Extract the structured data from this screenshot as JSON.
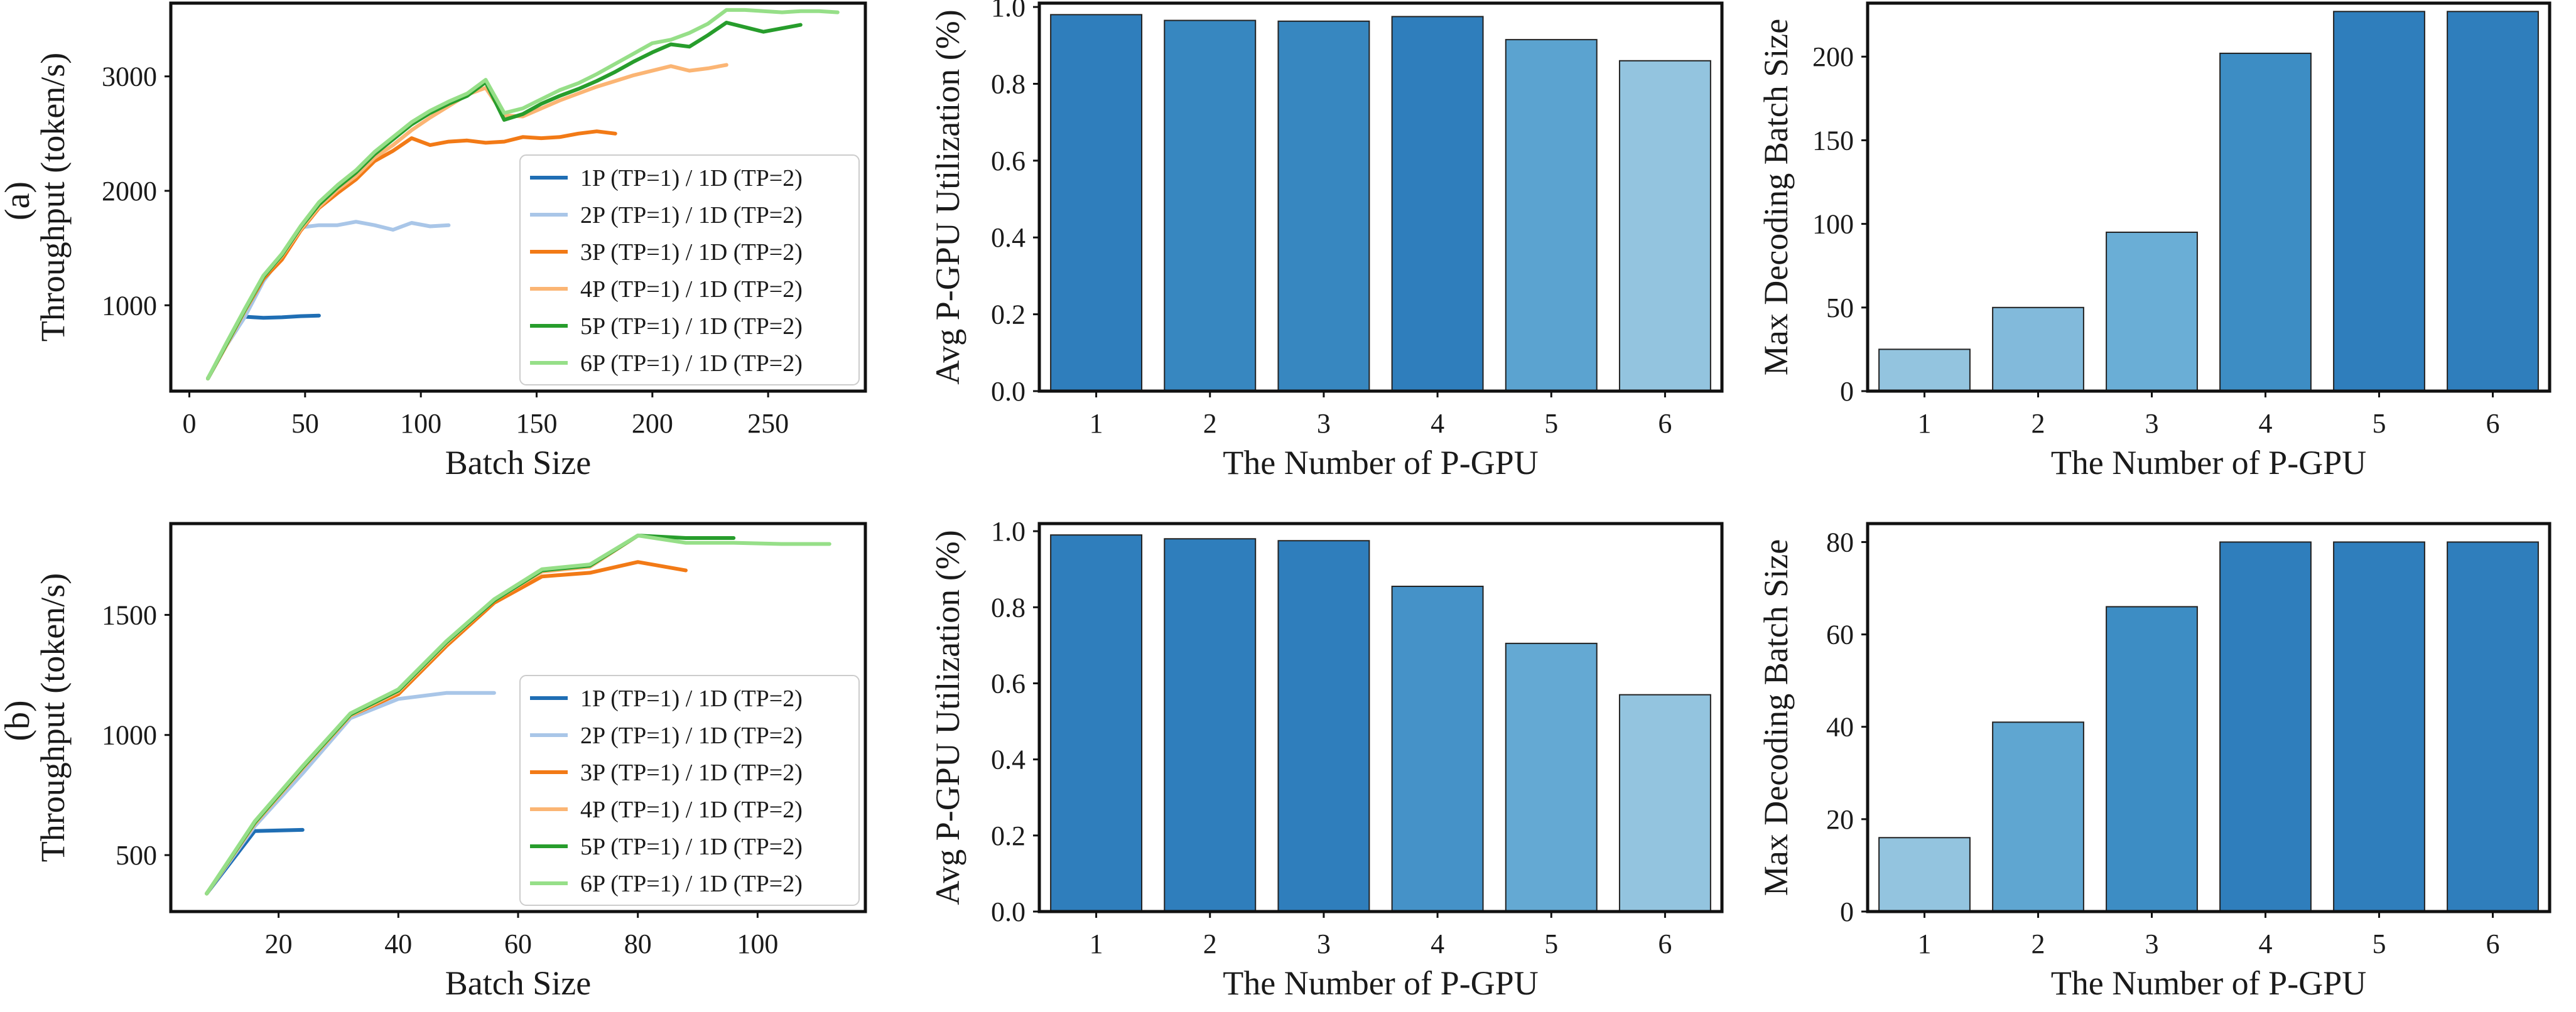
{
  "row_labels": [
    "(a)",
    "(b)"
  ],
  "series_colors": [
    "#1f6eb4",
    "#a9c6e8",
    "#f27a16",
    "#fbb574",
    "#279d2c",
    "#96df88"
  ],
  "chart_data": [
    {
      "type": "line",
      "row": 0,
      "xlabel": "Batch Size",
      "ylabel": "Throughput (token/s)",
      "xlim": [
        -8,
        292
      ],
      "ylim": [
        250,
        3640
      ],
      "xticks": [
        "0",
        "50",
        "100",
        "150",
        "200",
        "250"
      ],
      "yticks": [
        "1000",
        "2000",
        "3000"
      ],
      "legend_position": "lower-right",
      "series": [
        {
          "name": "1P (TP=1) / 1D (TP=2)",
          "x": [
            8,
            16,
            24,
            32,
            40,
            48,
            56
          ],
          "y": [
            360,
            650,
            900,
            890,
            895,
            905,
            910
          ]
        },
        {
          "name": "2P (TP=1) / 1D (TP=2)",
          "x": [
            8,
            16,
            24,
            32,
            40,
            48,
            56,
            64,
            72,
            80,
            88,
            96,
            104,
            112
          ],
          "y": [
            360,
            650,
            900,
            1210,
            1430,
            1680,
            1700,
            1700,
            1730,
            1700,
            1660,
            1720,
            1690,
            1700
          ]
        },
        {
          "name": "3P (TP=1) / 1D (TP=2)",
          "x": [
            8,
            16,
            24,
            32,
            40,
            48,
            56,
            64,
            72,
            80,
            88,
            96,
            104,
            112,
            120,
            128,
            136,
            144,
            152,
            160,
            168,
            176,
            184
          ],
          "y": [
            360,
            650,
            950,
            1230,
            1400,
            1650,
            1850,
            1980,
            2100,
            2260,
            2350,
            2460,
            2400,
            2430,
            2440,
            2420,
            2430,
            2470,
            2460,
            2470,
            2500,
            2520,
            2500
          ]
        },
        {
          "name": "4P (TP=1) / 1D (TP=2)",
          "x": [
            8,
            16,
            24,
            32,
            40,
            48,
            56,
            64,
            72,
            80,
            88,
            96,
            104,
            112,
            120,
            128,
            136,
            144,
            152,
            160,
            168,
            176,
            184,
            192,
            200,
            208,
            216,
            224,
            232
          ],
          "y": [
            360,
            650,
            950,
            1250,
            1430,
            1660,
            1860,
            2010,
            2130,
            2290,
            2400,
            2530,
            2640,
            2740,
            2840,
            2900,
            2660,
            2650,
            2720,
            2790,
            2850,
            2910,
            2960,
            3010,
            3050,
            3090,
            3050,
            3070,
            3100
          ]
        },
        {
          "name": "5P (TP=1) / 1D (TP=2)",
          "x": [
            8,
            16,
            24,
            32,
            40,
            48,
            56,
            64,
            72,
            80,
            88,
            96,
            104,
            112,
            120,
            128,
            136,
            144,
            152,
            160,
            168,
            176,
            184,
            192,
            200,
            208,
            216,
            224,
            232,
            240,
            248,
            256,
            264
          ],
          "y": [
            360,
            660,
            960,
            1250,
            1440,
            1680,
            1880,
            2030,
            2160,
            2320,
            2450,
            2580,
            2680,
            2760,
            2830,
            2950,
            2620,
            2670,
            2760,
            2830,
            2890,
            2960,
            3040,
            3130,
            3210,
            3280,
            3260,
            3360,
            3470,
            3430,
            3390,
            3420,
            3450
          ]
        },
        {
          "name": "6P (TP=1) / 1D (TP=2)",
          "x": [
            8,
            16,
            24,
            32,
            40,
            48,
            56,
            64,
            72,
            80,
            88,
            96,
            104,
            112,
            120,
            128,
            136,
            144,
            152,
            160,
            168,
            176,
            184,
            192,
            200,
            208,
            216,
            224,
            232,
            240,
            248,
            256,
            264,
            272,
            280
          ],
          "y": [
            360,
            670,
            970,
            1260,
            1450,
            1690,
            1900,
            2050,
            2180,
            2340,
            2470,
            2600,
            2700,
            2780,
            2850,
            2970,
            2680,
            2720,
            2800,
            2880,
            2940,
            3020,
            3110,
            3200,
            3290,
            3320,
            3380,
            3460,
            3580,
            3580,
            3570,
            3560,
            3570,
            3570,
            3560
          ]
        }
      ]
    },
    {
      "type": "bar",
      "row": 0,
      "xlabel": "The Number of P-GPU",
      "ylabel": "Avg P-GPU Utilization (%)",
      "ylim": [
        0,
        1.01
      ],
      "yticks": [
        "0.0",
        "0.2",
        "0.4",
        "0.6",
        "0.8",
        "1.0"
      ],
      "categories": [
        "1",
        "2",
        "3",
        "4",
        "5",
        "6"
      ],
      "values": [
        0.98,
        0.965,
        0.963,
        0.975,
        0.915,
        0.86
      ],
      "colors": [
        "#2f7ebc",
        "#3787c0",
        "#3787c0",
        "#2f7ebc",
        "#5ba3d0",
        "#93c4df"
      ]
    },
    {
      "type": "bar",
      "row": 0,
      "xlabel": "The Number of P-GPU",
      "ylabel": "Max Decoding Batch Size",
      "ylim": [
        0,
        232
      ],
      "yticks": [
        "0",
        "50",
        "100",
        "150",
        "200"
      ],
      "categories": [
        "1",
        "2",
        "3",
        "4",
        "5",
        "6"
      ],
      "values": [
        25,
        50,
        95,
        202,
        227,
        227
      ],
      "colors": [
        "#93c4df",
        "#82badb",
        "#6aaed6",
        "#3d8dc4",
        "#2f7ebc",
        "#2f7ebc"
      ]
    },
    {
      "type": "line",
      "row": 1,
      "xlabel": "Batch Size",
      "ylabel": "Throughput (token/s)",
      "xlim": [
        2,
        118
      ],
      "ylim": [
        265,
        1880
      ],
      "xticks": [
        "20",
        "40",
        "60",
        "80",
        "100"
      ],
      "yticks": [
        "500",
        "1000",
        "1500"
      ],
      "legend_position": "lower-right",
      "series": [
        {
          "name": "1P (TP=1) / 1D (TP=2)",
          "x": [
            8,
            16,
            24
          ],
          "y": [
            340,
            600,
            605
          ]
        },
        {
          "name": "2P (TP=1) / 1D (TP=2)",
          "x": [
            8,
            16,
            24,
            32,
            40,
            48,
            56
          ],
          "y": [
            340,
            620,
            840,
            1070,
            1150,
            1175,
            1175
          ]
        },
        {
          "name": "3P (TP=1) / 1D (TP=2)",
          "x": [
            8,
            16,
            24,
            32,
            40,
            48,
            56,
            64,
            72,
            80,
            88
          ],
          "y": [
            340,
            630,
            860,
            1080,
            1170,
            1370,
            1550,
            1660,
            1675,
            1720,
            1685
          ]
        },
        {
          "name": "4P (TP=1) / 1D (TP=2)",
          "x": [
            8,
            16,
            24,
            32,
            40,
            48,
            56,
            64,
            72,
            80
          ],
          "y": [
            340,
            630,
            860,
            1080,
            1180,
            1380,
            1560,
            1680,
            1700,
            1830
          ]
        },
        {
          "name": "5P (TP=1) / 1D (TP=2)",
          "x": [
            8,
            16,
            24,
            32,
            40,
            48,
            56,
            64,
            72,
            80,
            88,
            96
          ],
          "y": [
            340,
            635,
            865,
            1085,
            1185,
            1385,
            1560,
            1685,
            1705,
            1830,
            1820,
            1820
          ]
        },
        {
          "name": "6P (TP=1) / 1D (TP=2)",
          "x": [
            8,
            16,
            24,
            32,
            40,
            48,
            56,
            64,
            72,
            80,
            88,
            96,
            104,
            112
          ],
          "y": [
            340,
            640,
            870,
            1090,
            1190,
            1390,
            1565,
            1690,
            1710,
            1830,
            1800,
            1800,
            1795,
            1795
          ]
        }
      ]
    },
    {
      "type": "bar",
      "row": 1,
      "xlabel": "The Number of P-GPU",
      "ylabel": "Avg P-GPU Utilization (%)",
      "ylim": [
        0,
        1.02
      ],
      "yticks": [
        "0.0",
        "0.2",
        "0.4",
        "0.6",
        "0.8",
        "1.0"
      ],
      "categories": [
        "1",
        "2",
        "3",
        "4",
        "5",
        "6"
      ],
      "values": [
        0.99,
        0.98,
        0.975,
        0.855,
        0.705,
        0.57
      ],
      "colors": [
        "#2f7ebc",
        "#2f7ebc",
        "#2f7ebc",
        "#4592c8",
        "#64a9d3",
        "#93c4df"
      ]
    },
    {
      "type": "bar",
      "row": 1,
      "xlabel": "The Number of P-GPU",
      "ylabel": "Max Decoding Batch Size",
      "ylim": [
        0,
        84
      ],
      "yticks": [
        "0",
        "20",
        "40",
        "60",
        "80"
      ],
      "categories": [
        "1",
        "2",
        "3",
        "4",
        "5",
        "6"
      ],
      "values": [
        16,
        41,
        66,
        80,
        80,
        80
      ],
      "colors": [
        "#93c4df",
        "#5fa6d1",
        "#3d8dc4",
        "#2f7ebc",
        "#2f7ebc",
        "#2f7ebc"
      ]
    }
  ]
}
